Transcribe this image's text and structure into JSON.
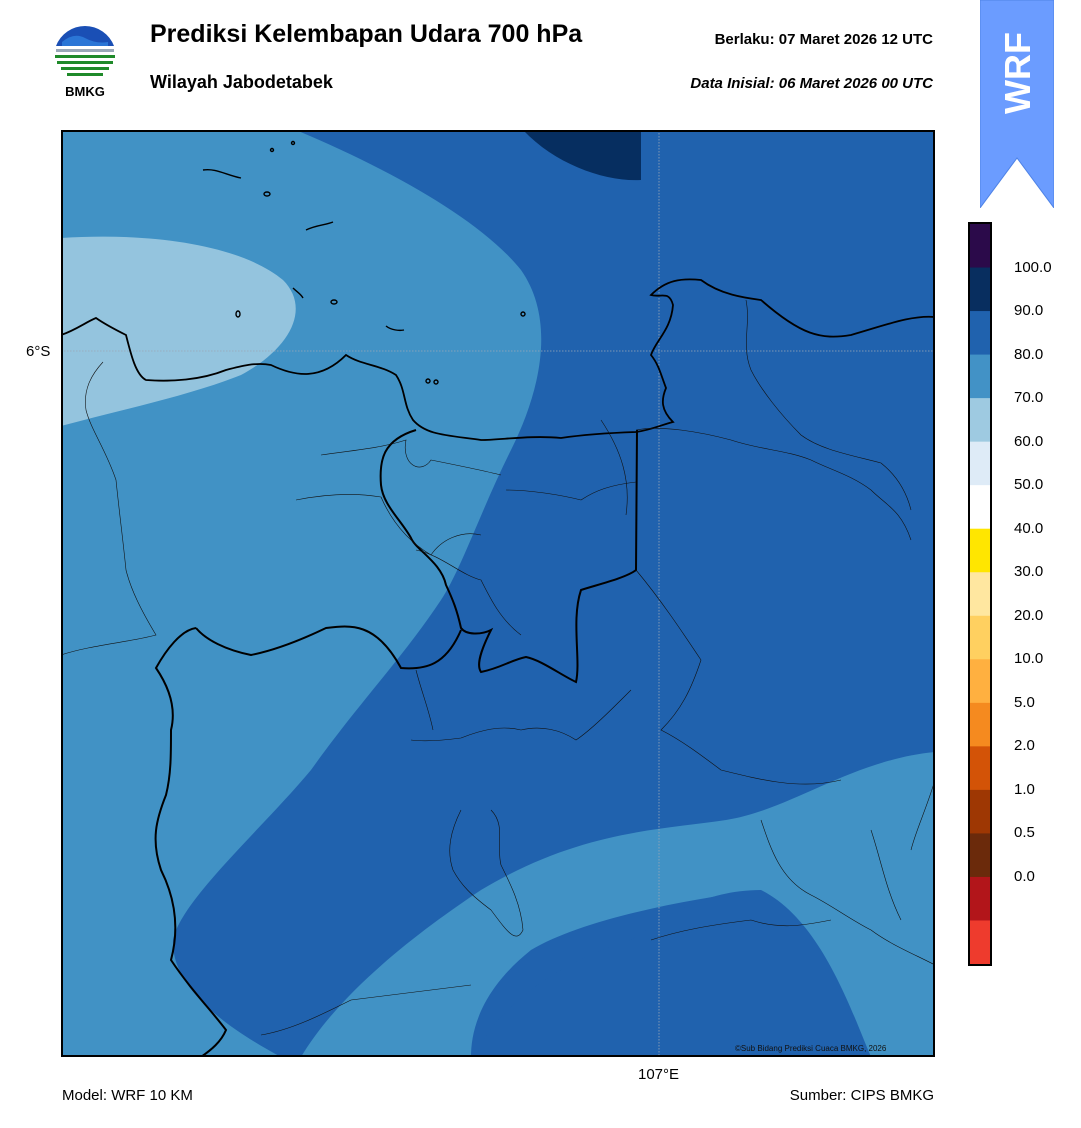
{
  "header": {
    "title": "Prediksi Kelembapan Udara 700 hPa",
    "subtitle": "Wilayah Jabodetabek",
    "valid_time": "Berlaku:  07 Maret 2026 12 UTC",
    "init_time": "Data Inisial:  06 Maret 2026 00 UTC",
    "logo_text": "BMKG"
  },
  "badge": {
    "text": "WRF",
    "color": "#6b9cff"
  },
  "map": {
    "lat_label": "6°S",
    "lon_label": "107°E",
    "copyright": "©Sub Bidang Prediksi Cuaca BMKG, 2026",
    "field_colors": {
      "60-70": "#94c4de",
      "70-80": "#4192c5",
      "80-90": "#2062ae",
      "90-100": "#062e60"
    }
  },
  "colorbar": {
    "labels": [
      "100.0",
      "90.0",
      "80.0",
      "70.0",
      "60.0",
      "50.0",
      "40.0",
      "30.0",
      "20.0",
      "10.0",
      "5.0",
      "2.0",
      "1.0",
      "0.5",
      "0.0"
    ],
    "colors_top_to_bottom": [
      "#2b0a4a",
      "#082e5f",
      "#2062ae",
      "#4292c6",
      "#9ecae1",
      "#deebf7",
      "#ffffff",
      "#ffe600",
      "#ffe7a0",
      "#ffd060",
      "#ffb040",
      "#f58a1f",
      "#d35307",
      "#9e3703",
      "#6b2a0b",
      "#b2151a",
      "#ee3b2d"
    ]
  },
  "footer": {
    "model": "Model: WRF 10 KM",
    "source": "Sumber: CIPS BMKG"
  }
}
